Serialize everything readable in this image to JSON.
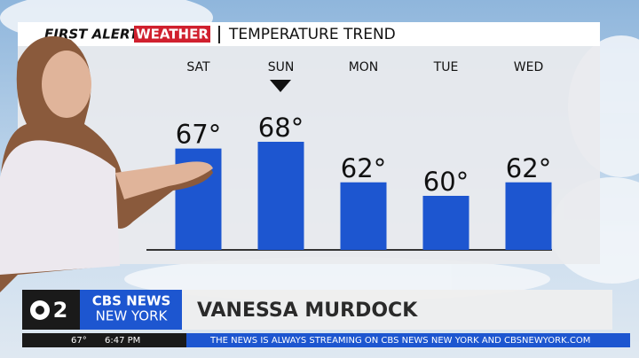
{
  "header": {
    "brand": "FIRST ALERT",
    "badge": "WEATHER",
    "title": "TEMPERATURE TREND"
  },
  "chart_data": {
    "type": "bar",
    "categories": [
      "SAT",
      "SUN",
      "MON",
      "TUE",
      "WED"
    ],
    "values": [
      67,
      68,
      62,
      60,
      62
    ],
    "value_labels": [
      "67°",
      "68°",
      "62°",
      "60°",
      "62°"
    ],
    "color": "#1d56d0",
    "ylim": [
      52,
      68
    ]
  },
  "lower_third": {
    "channel": "2",
    "network": "CBS NEWS",
    "city": "NEW YORK",
    "name": "VANESSA MURDOCK"
  },
  "ticker": {
    "temperature": "67°",
    "time": "6:47 PM",
    "text": "THE NEWS IS ALWAYS STREAMING ON CBS NEWS NEW YORK AND CBSNEWYORK.COM"
  }
}
